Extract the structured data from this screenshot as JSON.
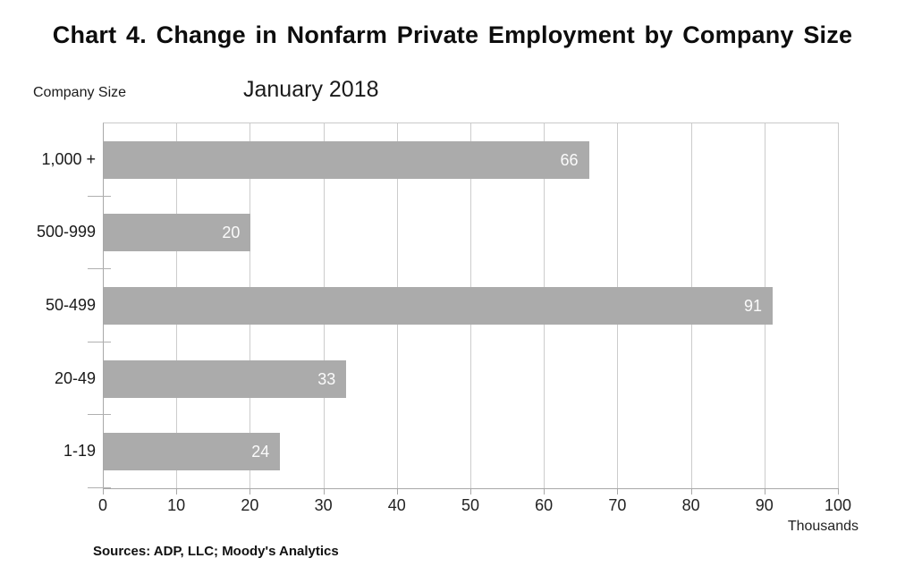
{
  "header": {
    "title": "Chart 4. Change in Nonfarm Private Employment by Company Size",
    "subtitle": "January 2018"
  },
  "labels": {
    "y_axis_title": "Company Size",
    "units": "Thousands",
    "source": "Sources: ADP, LLC; Moody's Analytics"
  },
  "colors": {
    "bar": "#ababab",
    "grid": "#cccccc",
    "axis": "#a8a8a8",
    "value_label": "#fbfbfb",
    "text": "#111111"
  },
  "chart_data": {
    "type": "bar",
    "orientation": "horizontal",
    "title": "Chart 4. Change in Nonfarm Private Employment by Company Size",
    "subtitle": "January 2018",
    "categories": [
      "1,000 +",
      "500-999",
      "50-499",
      "20-49",
      "1-19"
    ],
    "values": [
      66,
      20,
      91,
      33,
      24
    ],
    "xlabel": "Thousands",
    "ylabel": "Company Size",
    "xlim": [
      0,
      100
    ],
    "xticks": [
      0,
      10,
      20,
      30,
      40,
      50,
      60,
      70,
      80,
      90,
      100
    ],
    "grid": true,
    "legend": "none",
    "value_label_position": "inside-end",
    "source": "Sources: ADP, LLC; Moody's Analytics"
  }
}
